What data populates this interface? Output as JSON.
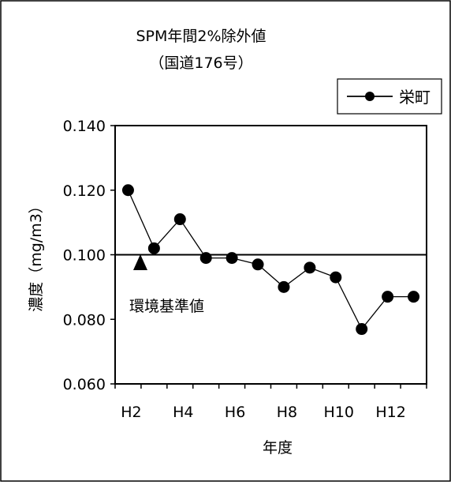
{
  "chart_data": {
    "type": "line",
    "title": "SPM年間2%除外値",
    "subtitle": "（国道176号）",
    "xlabel": "年度",
    "ylabel": "濃度（mg/m3）",
    "ylim": [
      0.06,
      0.14
    ],
    "yticks": [
      "0.060",
      "0.080",
      "0.100",
      "0.120",
      "0.140"
    ],
    "x": [
      "H2",
      "H3",
      "H4",
      "H5",
      "H6",
      "H7",
      "H8",
      "H9",
      "H10",
      "H11",
      "H12",
      "H13"
    ],
    "xtick_labels": [
      "H2",
      "H4",
      "H6",
      "H8",
      "H10",
      "H12"
    ],
    "series": [
      {
        "name": "栄町",
        "values": [
          0.12,
          0.102,
          0.111,
          0.099,
          0.099,
          0.097,
          0.09,
          0.096,
          0.093,
          0.077,
          0.087,
          0.087
        ]
      }
    ],
    "reference_line": {
      "value": 0.1,
      "label": "環境基準値"
    },
    "grid": false,
    "legend": "top-right",
    "colors": {
      "line": "#000000",
      "marker": "#000000",
      "background": "#ffffff"
    }
  }
}
